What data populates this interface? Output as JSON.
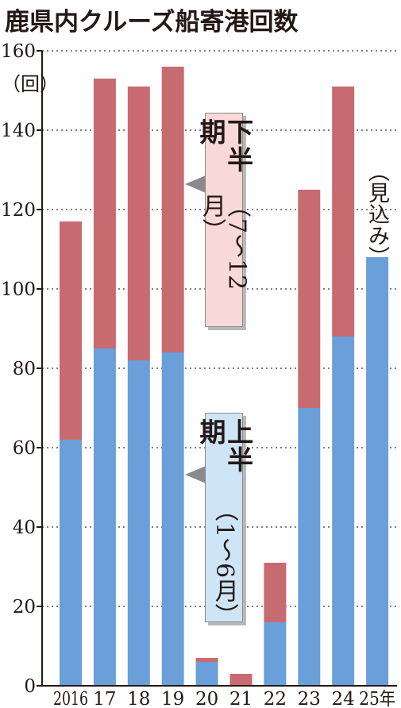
{
  "chart_data": {
    "type": "bar",
    "stacked": true,
    "title": "鹿県内クルーズ船寄港回数",
    "ylabel": "（回）",
    "ylim": [
      0,
      160
    ],
    "yticks": [
      0,
      20,
      40,
      60,
      80,
      100,
      120,
      140,
      160
    ],
    "grid": true,
    "categories": [
      "2016",
      "17",
      "18",
      "19",
      "20",
      "21",
      "22",
      "23",
      "24",
      "25年"
    ],
    "series": [
      {
        "name": "上半期（1〜6月）",
        "color": "#6a9fd9",
        "values": [
          62,
          85,
          82,
          84,
          6,
          0,
          16,
          70,
          88,
          108
        ]
      },
      {
        "name": "下半期（7〜12月）",
        "color": "#c86b71",
        "values": [
          55,
          68,
          69,
          72,
          1,
          3,
          15,
          55,
          63,
          0
        ]
      }
    ],
    "annotations": [
      {
        "text": "（見込み）",
        "category": "25年"
      }
    ],
    "legend": {
      "upper": {
        "main": "上半期",
        "sub": "（1〜6月）",
        "bg": "#cde5f7"
      },
      "lower": {
        "main": "下半期",
        "sub": "（7〜12月）",
        "bg": "#f8d9d7"
      }
    }
  }
}
